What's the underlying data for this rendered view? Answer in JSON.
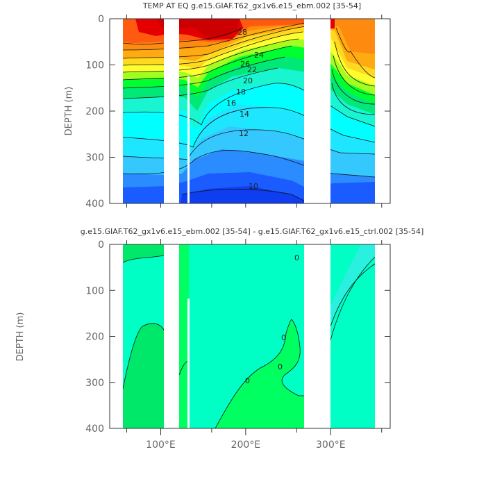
{
  "chart_data": [
    {
      "type": "contour",
      "title": "TEMP AT EQ g.e15.GIAF.T62_gx1v6.e15_ebm.002 [35-54]",
      "ylabel": "DEPTH (m)",
      "xlim": [
        40,
        370
      ],
      "ylim": [
        400,
        0
      ],
      "yticks": [
        0,
        100,
        200,
        300,
        400
      ],
      "xticks_minor": [
        60,
        100,
        160,
        200,
        260,
        300,
        360
      ],
      "land_columns": [
        [
          100,
          118
        ],
        [
          278,
          312
        ]
      ],
      "thin_gaps": [
        127
      ],
      "contour_labels": [
        {
          "text": "28",
          "x": 220,
          "y": 26
        },
        {
          "text": "26",
          "x": 222,
          "y": 88
        },
        {
          "text": "24",
          "x": 235,
          "y": 73
        },
        {
          "text": "22",
          "x": 228,
          "y": 95
        },
        {
          "text": "20",
          "x": 223,
          "y": 113
        },
        {
          "text": "18",
          "x": 216,
          "y": 135
        },
        {
          "text": "16",
          "x": 205,
          "y": 165
        },
        {
          "text": "14",
          "x": 193,
          "y": 199
        },
        {
          "text": "12",
          "x": 212,
          "y": 240
        },
        {
          "text": "10",
          "x": 215,
          "y": 358
        }
      ]
    },
    {
      "type": "contour",
      "title": "g.e15.GIAF.T62_gx1v6.e15_ebm.002 [35-54] - g.e15.GIAF.T62_gx1v6.e15_ctrl.002 [35-54]",
      "ylabel": "DEPTH (m)",
      "xlim": [
        40,
        370
      ],
      "ylim": [
        400,
        0
      ],
      "yticks": [
        0,
        100,
        200,
        300,
        400
      ],
      "xticks": [
        {
          "value": 100,
          "label": "100°E"
        },
        {
          "value": 200,
          "label": "200°E"
        },
        {
          "value": 300,
          "label": "300°E"
        }
      ],
      "xticks_minor": [
        60,
        160,
        260,
        360
      ],
      "land_columns": [
        [
          100,
          118
        ],
        [
          278,
          312
        ]
      ],
      "thin_gaps": [
        127
      ],
      "contour_labels": [
        {
          "text": "0",
          "x": 198,
          "y": 298
        },
        {
          "text": "0",
          "x": 254,
          "y": 260
        },
        {
          "text": "0",
          "x": 254,
          "y": 210
        },
        {
          "text": "0",
          "x": 252,
          "y": 28
        }
      ]
    }
  ]
}
